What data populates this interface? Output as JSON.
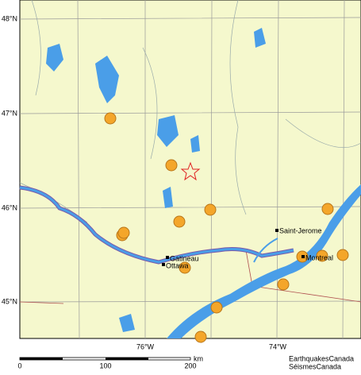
{
  "map": {
    "latitude_labels": [
      "48°N",
      "47°N",
      "46°N",
      "45°N"
    ],
    "longitude_labels": [
      "76°W",
      "74°W"
    ],
    "places": [
      "Saint-Jerome",
      "Gatineau",
      "Ottawa",
      "Montreal"
    ],
    "scale": {
      "labels": [
        "0",
        "100",
        "200"
      ],
      "unit": "km"
    },
    "credit": [
      "EarthquakesCanada",
      "SéismesCanada"
    ]
  }
}
